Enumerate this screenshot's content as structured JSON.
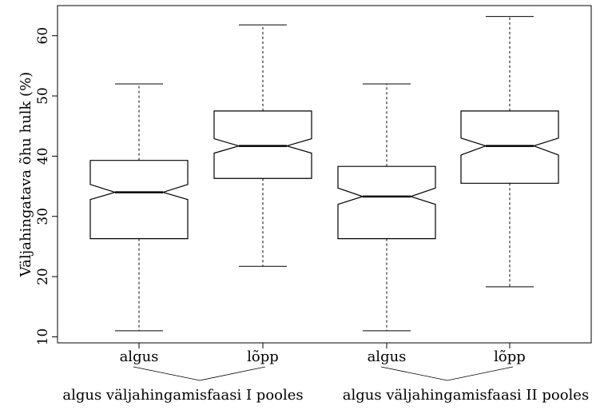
{
  "chart_data": {
    "type": "boxplot",
    "notched": true,
    "title": "",
    "ylabel": "Väljahingatava õhu hulk (%)",
    "xlabel": "",
    "ylim": [
      9.0,
      65.0
    ],
    "yticks": [
      10,
      20,
      30,
      40,
      50,
      60
    ],
    "grid": false,
    "categories": [
      "algus",
      "lõpp",
      "algus",
      "lõpp"
    ],
    "groups": [
      {
        "label": "algus väljahingamisfaasi I pooles",
        "members": [
          0,
          1
        ]
      },
      {
        "label": "algus väljahingamisfaasi II pooles",
        "members": [
          2,
          3
        ]
      }
    ],
    "boxes": [
      {
        "min": 11.0,
        "q1": 26.3,
        "median": 34.0,
        "q3": 39.3,
        "max": 52.0,
        "notch_low": 32.8,
        "notch_high": 35.3
      },
      {
        "min": 21.7,
        "q1": 36.3,
        "median": 41.7,
        "q3": 47.5,
        "max": 61.8,
        "notch_low": 40.5,
        "notch_high": 42.9
      },
      {
        "min": 11.0,
        "q1": 26.3,
        "median": 33.3,
        "q3": 38.3,
        "max": 52.0,
        "notch_low": 32.0,
        "notch_high": 34.7
      },
      {
        "min": 18.3,
        "q1": 35.5,
        "median": 41.7,
        "q3": 47.5,
        "max": 63.2,
        "notch_low": 40.2,
        "notch_high": 43.0
      }
    ]
  }
}
